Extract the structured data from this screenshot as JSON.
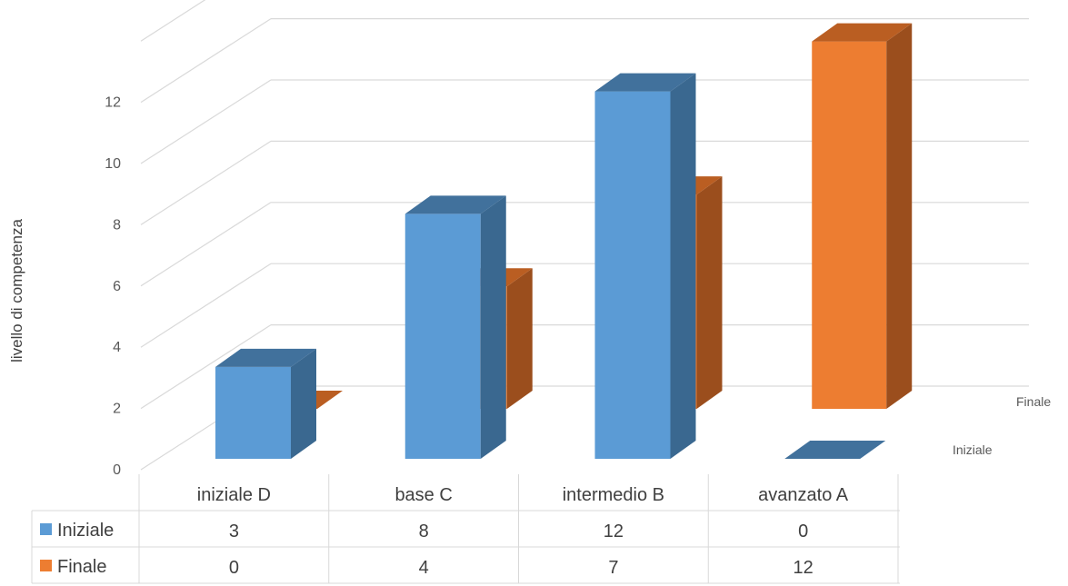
{
  "chart_data": {
    "type": "bar",
    "style": "3d-column",
    "ylabel": "livello di competenza",
    "ylim": [
      0,
      12
    ],
    "yticks": [
      "0",
      "2",
      "4",
      "6",
      "8",
      "10",
      "12"
    ],
    "categories": [
      "iniziale D",
      "base C",
      "intermedio B",
      "avanzato A"
    ],
    "series": [
      {
        "name": "Iniziale",
        "values": [
          3,
          8,
          12,
          0
        ],
        "color": "#5B9BD5",
        "side": "#3A6890",
        "top": "#41719C"
      },
      {
        "name": "Finale",
        "values": [
          0,
          4,
          7,
          12
        ],
        "color": "#ED7D31",
        "side": "#9B4E1D",
        "top": "#BA5E22"
      }
    ],
    "depth_axis_labels": [
      "Finale",
      "Iniziale"
    ],
    "grid": true,
    "data_table": true
  }
}
